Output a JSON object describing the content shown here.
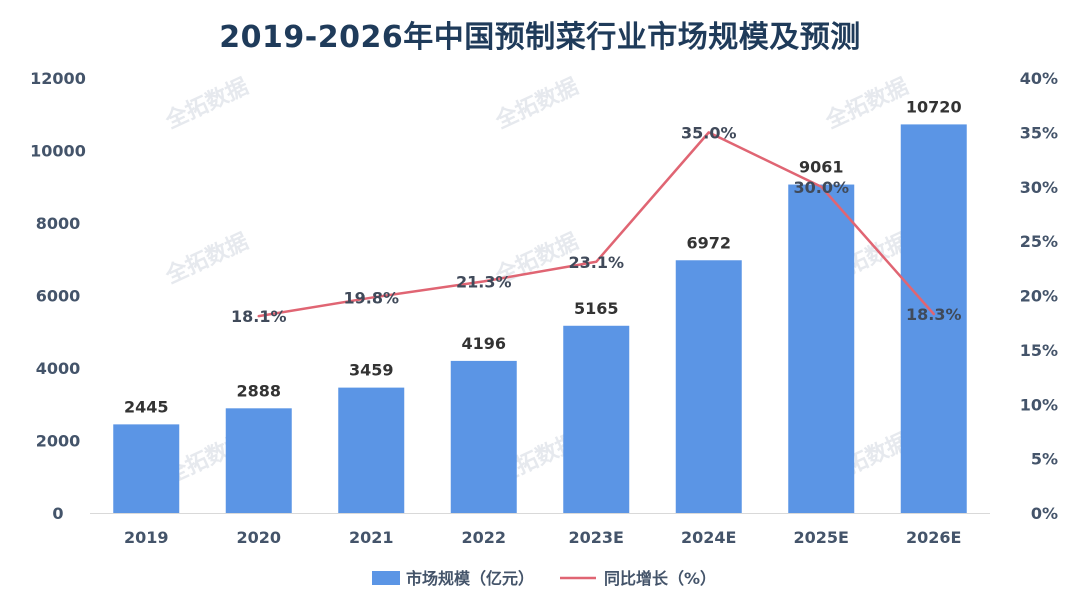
{
  "title": "2019-2026年中国预制菜行业市场规模及预测",
  "watermark": "全拓数据",
  "chart_data": {
    "type": "bar",
    "title": "2019-2026年中国预制菜行业市场规模及预测",
    "categories": [
      "2019",
      "2020",
      "2021",
      "2022",
      "2023E",
      "2024E",
      "2025E",
      "2026E"
    ],
    "series": [
      {
        "name": "市场规模（亿元）",
        "type": "bar",
        "axis": "left",
        "color": "#5b95e5",
        "values": [
          2445,
          2888,
          3459,
          4196,
          5165,
          6972,
          9061,
          10720
        ],
        "labels": [
          "2445",
          "2888",
          "3459",
          "4196",
          "5165",
          "6972",
          "9061",
          "10720"
        ]
      },
      {
        "name": "同比增长（%）",
        "type": "line",
        "axis": "right",
        "color": "#e06573",
        "values": [
          null,
          18.1,
          19.8,
          21.3,
          23.1,
          35.0,
          30.0,
          18.3
        ],
        "labels": [
          "",
          "18.1%",
          "19.8%",
          "21.3%",
          "23.1%",
          "35.0%",
          "30.0%",
          "18.3%"
        ]
      }
    ],
    "left_axis": {
      "min": 0,
      "max": 12000,
      "ticks": [
        0,
        2000,
        4000,
        6000,
        8000,
        10000,
        12000
      ],
      "tick_labels": [
        "0",
        "2000",
        "4000",
        "6000",
        "8000",
        "10000",
        "12000"
      ]
    },
    "right_axis": {
      "min": 0,
      "max": 40,
      "ticks": [
        0,
        5,
        10,
        15,
        20,
        25,
        30,
        35,
        40
      ],
      "tick_labels": [
        "0%",
        "5%",
        "10%",
        "15%",
        "20%",
        "25%",
        "30%",
        "35%",
        "40%"
      ]
    },
    "legend": {
      "position": "bottom-center",
      "items": [
        "市场规模（亿元）",
        "同比增长（%）"
      ]
    },
    "grid": false
  }
}
